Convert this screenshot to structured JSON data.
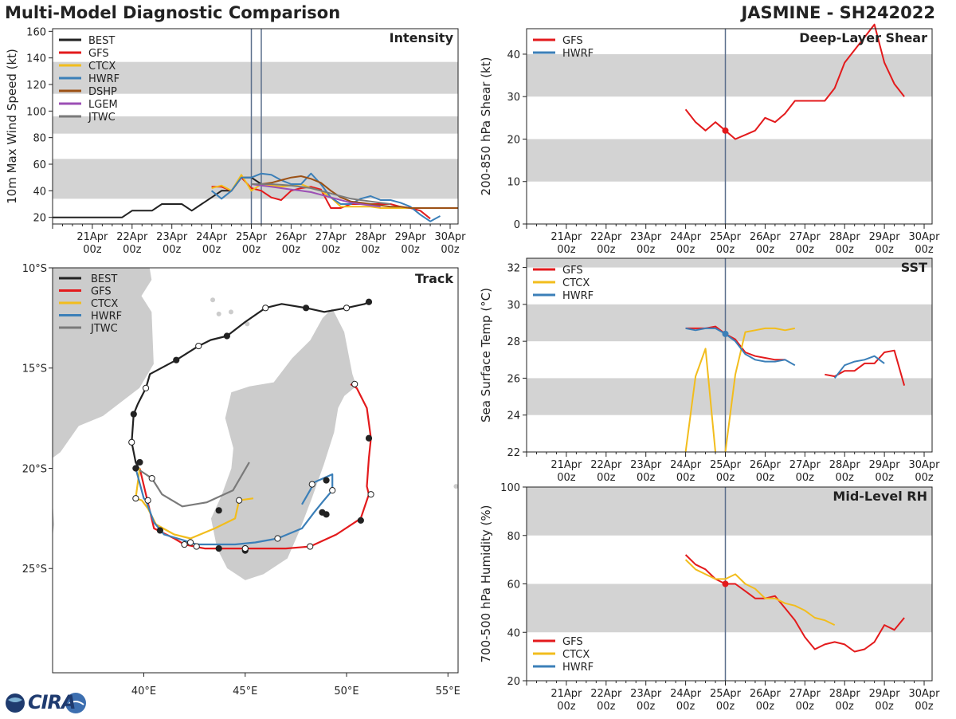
{
  "header": {
    "title": "Multi-Model Diagnostic Comparison",
    "storm": "JASMINE - SH242022"
  },
  "colors": {
    "BEST": "#222222",
    "GFS": "#e31a1c",
    "CTCX": "#f2bd1d",
    "HWRF": "#3b7fb8",
    "DSHP": "#9c5115",
    "LGEM": "#9c4fb5",
    "JTWC": "#7a7a7a",
    "band": "#d3d3d3",
    "vline": "#5b6f8c",
    "land": "#cccccc"
  },
  "time_axis": {
    "tick_days": [
      "21Apr",
      "22Apr",
      "23Apr",
      "24Apr",
      "25Apr",
      "26Apr",
      "27Apr",
      "28Apr",
      "29Apr",
      "30Apr"
    ],
    "tick_hour": "00z"
  },
  "logo": {
    "text": "CIRA"
  },
  "chart_data": [
    {
      "id": "intensity",
      "type": "line",
      "title": "Intensity",
      "ylabel": "10m Max Wind Speed (kt)",
      "ylim": [
        15,
        162
      ],
      "xlim": [
        20.0,
        30.2
      ],
      "yticks": [
        20,
        40,
        60,
        80,
        100,
        120,
        140,
        160
      ],
      "bands": [
        [
          34,
          64
        ],
        [
          83,
          96
        ],
        [
          113,
          137
        ]
      ],
      "vlines": [
        25.0,
        25.25
      ],
      "legend": [
        "BEST",
        "GFS",
        "CTCX",
        "HWRF",
        "DSHP",
        "LGEM",
        "JTWC"
      ],
      "series": [
        {
          "name": "BEST",
          "x": [
            20.0,
            20.5,
            21.0,
            21.5,
            21.75,
            22.0,
            22.5,
            22.75,
            23.0,
            23.25,
            23.5,
            23.75,
            24.0,
            24.25,
            24.5,
            24.75,
            25.0,
            25.25
          ],
          "y": [
            20,
            20,
            20,
            20,
            20,
            25,
            25,
            30,
            30,
            30,
            25,
            30,
            35,
            40,
            40,
            50,
            50,
            45
          ]
        },
        {
          "name": "GFS",
          "x": [
            24.0,
            24.25,
            24.5,
            24.75,
            25.0,
            25.25,
            25.5,
            25.75,
            26.0,
            26.25,
            26.5,
            26.75,
            27.0,
            27.25,
            27.5,
            27.75,
            28.0,
            28.25,
            28.5,
            28.75,
            29.0,
            29.25,
            29.5
          ],
          "y": [
            43,
            43,
            40,
            50,
            42,
            40,
            35,
            33,
            40,
            42,
            43,
            41,
            27,
            27,
            30,
            30,
            30,
            30,
            30,
            28,
            27,
            25,
            19
          ]
        },
        {
          "name": "CTCX",
          "x": [
            24.0,
            24.25,
            24.5,
            24.75,
            25.0,
            25.25,
            25.5,
            25.75,
            26.0,
            26.25,
            26.5,
            26.75,
            27.0,
            27.25,
            27.5,
            27.75,
            28.0,
            28.25,
            28.5,
            28.75,
            29.0
          ],
          "y": [
            42,
            44,
            40,
            52,
            40,
            45,
            44,
            43,
            44,
            45,
            42,
            40,
            35,
            28,
            28,
            28,
            28,
            27,
            27,
            27,
            27
          ]
        },
        {
          "name": "HWRF",
          "x": [
            24.0,
            24.25,
            24.5,
            24.75,
            25.0,
            25.25,
            25.5,
            25.75,
            26.0,
            26.25,
            26.5,
            26.75,
            27.0,
            27.25,
            27.5,
            27.75,
            28.0,
            28.25,
            28.5,
            28.75,
            29.0,
            29.25,
            29.5,
            29.75
          ],
          "y": [
            40,
            34,
            40,
            50,
            50,
            53,
            52,
            48,
            45,
            45,
            53,
            45,
            35,
            30,
            30,
            34,
            36,
            33,
            33,
            31,
            28,
            22,
            17,
            21
          ]
        },
        {
          "name": "DSHP",
          "x": [
            25.0,
            25.25,
            25.5,
            25.75,
            26.0,
            26.25,
            26.5,
            26.75,
            27.0,
            27.25,
            27.5,
            27.75,
            28.0,
            28.25,
            28.5,
            28.75,
            29.0,
            29.5,
            30.0,
            30.2
          ],
          "y": [
            45,
            45,
            46,
            48,
            50,
            51,
            49,
            46,
            40,
            35,
            32,
            31,
            30,
            29,
            28,
            28,
            27,
            27,
            27,
            27
          ]
        },
        {
          "name": "LGEM",
          "x": [
            25.0,
            25.25,
            25.5,
            25.75,
            26.0,
            26.25,
            26.5,
            26.75,
            27.0,
            27.25,
            27.5,
            27.75,
            28.0,
            28.25
          ],
          "y": [
            45,
            44,
            43,
            42,
            41,
            40,
            39,
            37,
            35,
            33,
            31,
            30,
            29,
            28
          ]
        },
        {
          "name": "JTWC",
          "x": [
            25.0,
            25.5,
            26.0,
            26.5,
            27.0,
            27.5,
            28.0,
            28.5
          ],
          "y": [
            45,
            45,
            44,
            42,
            38,
            34,
            32,
            30
          ]
        }
      ]
    },
    {
      "id": "shear",
      "type": "line",
      "title": "Deep-Layer Shear",
      "ylabel": "200-850 hPa Shear (kt)",
      "ylim": [
        0,
        46
      ],
      "xlim": [
        20.0,
        30.2
      ],
      "yticks": [
        0,
        10,
        20,
        30,
        40
      ],
      "bands": [
        [
          10,
          20
        ],
        [
          30,
          40
        ]
      ],
      "vlines": [
        25.0
      ],
      "legend": [
        "GFS",
        "HWRF"
      ],
      "series": [
        {
          "name": "GFS",
          "x": [
            24.0,
            24.25,
            24.5,
            24.75,
            25.0,
            25.25,
            25.5,
            25.75,
            26.0,
            26.25,
            26.5,
            26.75,
            27.0,
            27.25,
            27.5,
            27.75,
            28.0,
            28.25,
            28.5,
            28.75,
            29.0,
            29.25,
            29.5
          ],
          "y": [
            27,
            24,
            22,
            24,
            22,
            20,
            21,
            22,
            25,
            24,
            26,
            29,
            29,
            29,
            29,
            32,
            38,
            41,
            44,
            47,
            38,
            33,
            30
          ]
        }
      ],
      "markers": [
        {
          "series": "GFS",
          "x": 25.0,
          "y": 22
        }
      ]
    },
    {
      "id": "sst",
      "type": "line",
      "title": "SST",
      "ylabel": "Sea Surface Temp (°C)",
      "ylim": [
        22,
        32.5
      ],
      "xlim": [
        20.0,
        30.2
      ],
      "yticks": [
        22,
        24,
        26,
        28,
        30,
        32
      ],
      "bands": [
        [
          24,
          26
        ],
        [
          28,
          30
        ],
        [
          32,
          32.5
        ]
      ],
      "vlines": [
        25.0
      ],
      "legend": [
        "GFS",
        "CTCX",
        "HWRF"
      ],
      "series": [
        {
          "name": "GFS",
          "x": [
            24.0,
            24.25,
            24.5,
            24.75,
            25.0,
            25.25,
            25.5,
            25.75,
            26.0,
            26.25,
            26.5
          ],
          "y": [
            28.7,
            28.7,
            28.7,
            28.8,
            28.4,
            28.1,
            27.4,
            27.2,
            27.1,
            27.0,
            27.0
          ]
        },
        {
          "name": "GFS",
          "x": [
            27.5,
            27.75,
            28.0,
            28.25,
            28.5,
            28.75,
            29.0,
            29.25,
            29.5
          ],
          "y": [
            26.2,
            26.1,
            26.4,
            26.4,
            26.8,
            26.8,
            27.4,
            27.5,
            25.6
          ]
        },
        {
          "name": "CTCX",
          "x": [
            24.0,
            24.25,
            24.5,
            24.75
          ],
          "y": [
            22.0,
            26.1,
            27.6,
            22.0
          ]
        },
        {
          "name": "CTCX",
          "x": [
            25.0,
            25.25,
            25.5,
            25.75,
            26.0,
            26.25,
            26.5,
            26.75
          ],
          "y": [
            22.0,
            26.2,
            28.5,
            28.6,
            28.7,
            28.7,
            28.6,
            28.7
          ]
        },
        {
          "name": "HWRF",
          "x": [
            24.0,
            24.25,
            24.5,
            24.75,
            25.0,
            25.25,
            25.5,
            25.75,
            26.0,
            26.25,
            26.5,
            26.75
          ],
          "y": [
            28.7,
            28.6,
            28.7,
            28.7,
            28.4,
            28.0,
            27.3,
            27.0,
            26.9,
            26.9,
            27.0,
            26.7
          ]
        },
        {
          "name": "HWRF",
          "x": [
            27.75,
            28.0,
            28.25,
            28.5,
            28.75,
            29.0
          ],
          "y": [
            26.0,
            26.7,
            26.9,
            27.0,
            27.2,
            26.8
          ]
        }
      ],
      "markers": [
        {
          "series": "HWRF",
          "x": 25.0,
          "y": 28.4
        }
      ]
    },
    {
      "id": "rh",
      "type": "line",
      "title": "Mid-Level RH",
      "ylabel": "700-500 hPa Humidity (%)",
      "ylim": [
        20,
        100
      ],
      "xlim": [
        20.0,
        30.2
      ],
      "yticks": [
        20,
        40,
        60,
        80,
        100
      ],
      "bands": [
        [
          40,
          60
        ],
        [
          80,
          100
        ]
      ],
      "vlines": [
        25.0
      ],
      "legend": [
        "GFS",
        "CTCX",
        "HWRF"
      ],
      "legend_position": "bottom-left",
      "series": [
        {
          "name": "GFS",
          "x": [
            24.0,
            24.25,
            24.5,
            24.75,
            25.0,
            25.25,
            25.5,
            25.75,
            26.0,
            26.25,
            26.5,
            26.75,
            27.0,
            27.25,
            27.5,
            27.75,
            28.0,
            28.25,
            28.5,
            28.75,
            29.0,
            29.25,
            29.5
          ],
          "y": [
            72,
            68,
            66,
            62,
            60,
            60,
            57,
            54,
            54,
            55,
            50,
            45,
            38,
            33,
            35,
            36,
            35,
            32,
            33,
            36,
            43,
            41,
            46
          ]
        },
        {
          "name": "CTCX",
          "x": [
            24.0,
            24.25,
            24.5,
            24.75,
            25.0,
            25.25,
            25.5,
            25.75,
            26.0,
            26.25,
            26.5,
            26.75,
            27.0,
            27.25,
            27.5,
            27.75
          ],
          "y": [
            70,
            66,
            64,
            62,
            62,
            64,
            60,
            58,
            54,
            54,
            52,
            51,
            49,
            46,
            45,
            43
          ]
        }
      ],
      "markers": [
        {
          "series": "GFS",
          "x": 25.0,
          "y": 60
        }
      ]
    },
    {
      "id": "track",
      "type": "line",
      "title": "Track",
      "xlim_lon": [
        35.5,
        55.5
      ],
      "ylim_lat": [
        -30.2,
        -10.0
      ],
      "xticks": [
        {
          "v": 40,
          "label": "40°E"
        },
        {
          "v": 45,
          "label": "45°E"
        },
        {
          "v": 50,
          "label": "50°E"
        },
        {
          "v": 55,
          "label": "55°E"
        }
      ],
      "yticks": [
        {
          "v": -10,
          "label": "10°S"
        },
        {
          "v": -15,
          "label": "15°S"
        },
        {
          "v": -20,
          "label": "20°S"
        },
        {
          "v": -25,
          "label": "25°S"
        }
      ],
      "legend": [
        "BEST",
        "GFS",
        "CTCX",
        "HWRF",
        "JTWC"
      ],
      "series": [
        {
          "name": "BEST",
          "lon": [
            51.1,
            50.9,
            50.0,
            48.9,
            48.0,
            46.8,
            46.0,
            45.0,
            44.1,
            43.3,
            42.7,
            41.6,
            40.3,
            40.1,
            39.7,
            39.5,
            39.4,
            39.6,
            39.8
          ],
          "lat": [
            -11.7,
            -11.8,
            -12.0,
            -12.2,
            -12.0,
            -11.8,
            -12.0,
            -12.7,
            -13.4,
            -13.6,
            -13.9,
            -14.6,
            -15.3,
            -16.0,
            -16.8,
            -17.3,
            -18.7,
            -19.7,
            -20.1
          ]
        },
        {
          "name": "GFS",
          "lon": [
            39.8,
            40.5,
            41.5,
            42.0,
            43.0,
            44.0,
            45.0,
            46.0,
            47.0,
            48.2,
            49.5,
            50.7,
            51.1,
            51.0,
            51.1,
            51.2,
            51.0,
            50.5,
            50.2
          ],
          "lat": [
            -20.0,
            -23.0,
            -23.5,
            -23.8,
            -24.0,
            -24.0,
            -24.0,
            -24.0,
            -24.0,
            -23.9,
            -23.3,
            -22.5,
            -21.3,
            -20.9,
            -19.5,
            -18.5,
            -17.0,
            -16.0,
            -15.8
          ]
        },
        {
          "name": "CTCX",
          "lon": [
            39.8,
            39.6,
            39.9,
            40.2,
            40.6,
            41.5,
            42.3,
            43.5,
            44.5,
            44.7,
            45.4
          ],
          "lat": [
            -20.0,
            -21.5,
            -21.6,
            -22.0,
            -22.8,
            -23.3,
            -23.5,
            -23.0,
            -22.5,
            -21.6,
            -21.5
          ]
        },
        {
          "name": "HWRF",
          "lon": [
            39.6,
            40.0,
            40.1,
            40.5,
            41.0,
            42.0,
            42.6,
            43.3,
            44.5,
            45.5,
            46.6,
            47.8,
            48.4,
            48.8,
            49.3,
            49.3,
            48.4,
            48.2,
            47.8
          ],
          "lat": [
            -20.0,
            -21.5,
            -21.6,
            -22.7,
            -23.3,
            -23.6,
            -23.8,
            -23.8,
            -23.8,
            -23.7,
            -23.5,
            -23.0,
            -22.2,
            -21.7,
            -21.1,
            -20.3,
            -20.7,
            -21.1,
            -21.8
          ]
        },
        {
          "name": "JTWC",
          "lon": [
            39.8,
            40.4,
            40.9,
            41.9,
            43.1,
            44.4,
            45.2
          ],
          "lat": [
            -20.1,
            -20.5,
            -21.3,
            -21.9,
            -21.7,
            -21.1,
            -19.7
          ]
        }
      ],
      "markers": [
        {
          "name": "BEST",
          "filled": true,
          "lon": [
            51.1,
            48.0,
            44.1,
            41.6,
            39.5,
            39.8
          ],
          "lat": [
            -11.7,
            -12.0,
            -13.4,
            -14.6,
            -17.3,
            -19.7
          ]
        },
        {
          "name": "BEST",
          "filled": false,
          "lon": [
            50.0,
            46.0,
            42.7,
            40.1,
            39.4
          ],
          "lat": [
            -12.0,
            -12.0,
            -13.9,
            -16.0,
            -18.7
          ]
        },
        {
          "name": "GFS",
          "filled": true,
          "lon": [
            40.8,
            43.7,
            45.0,
            49.0,
            50.7,
            51.1
          ],
          "lat": [
            -23.1,
            -24.0,
            -24.1,
            -22.3,
            -22.6,
            -18.5
          ]
        },
        {
          "name": "GFS",
          "filled": false,
          "lon": [
            39.6,
            40.2,
            42.0,
            44.7,
            48.2,
            49.3,
            51.2,
            50.4
          ],
          "lat": [
            -21.5,
            -21.6,
            -23.8,
            -21.6,
            -23.9,
            -21.1,
            -21.3,
            -15.8
          ]
        },
        {
          "name": "HWRF",
          "filled": true,
          "lon": [
            43.7,
            45.0,
            48.8,
            49.0,
            39.6
          ],
          "lat": [
            -22.1,
            -24.0,
            -22.2,
            -20.6,
            -20.0
          ]
        },
        {
          "name": "HWRF",
          "filled": false,
          "lon": [
            42.3,
            42.6,
            46.6,
            48.3,
            45.0,
            40.4
          ],
          "lat": [
            -23.7,
            -23.9,
            -23.5,
            -20.8,
            -24.0,
            -20.5
          ]
        }
      ]
    }
  ]
}
